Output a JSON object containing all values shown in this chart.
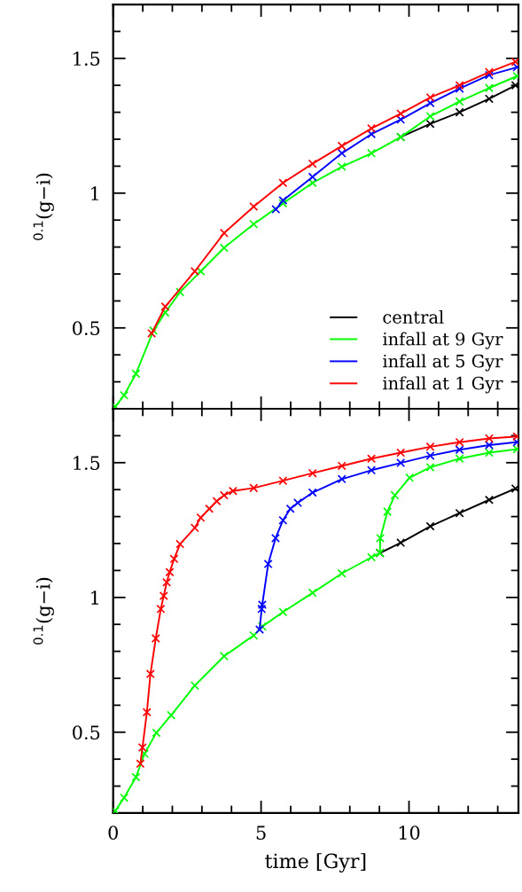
{
  "chart_data": [
    {
      "type": "line",
      "ylabel": "$^{0.1}$(g−i)",
      "xlim": [
        0,
        13.7
      ],
      "ylim": [
        0.2,
        1.7
      ],
      "marker": "cross",
      "line_style": "solid",
      "legend": "bottom right",
      "tick_labels": "y",
      "grid": false,
      "xticks": [
        0,
        {
          "value": 1,
          "label": null
        },
        {
          "value": 2,
          "label": null
        },
        {
          "value": 3,
          "label": null
        },
        {
          "value": 4,
          "label": null
        },
        5,
        {
          "value": 6,
          "label": null
        },
        {
          "value": 7,
          "label": null
        },
        {
          "value": 8,
          "label": null
        },
        {
          "value": 9,
          "label": null
        },
        10,
        {
          "value": 11,
          "label": null
        },
        {
          "value": 12,
          "label": null
        },
        {
          "value": 13,
          "label": null
        }
      ],
      "yticks": [
        {
          "value": 0.2,
          "label": null
        },
        {
          "value": 0.3,
          "label": null
        },
        {
          "value": 0.4,
          "label": null
        },
        0.5,
        {
          "value": 0.6,
          "label": null
        },
        {
          "value": 0.7,
          "label": null
        },
        {
          "value": 0.8,
          "label": null
        },
        {
          "value": 0.9,
          "label": null
        },
        1,
        {
          "value": 1.1,
          "label": null
        },
        {
          "value": 1.2,
          "label": null
        },
        {
          "value": 1.3,
          "label": null
        },
        {
          "value": 1.4,
          "label": null
        },
        1.5,
        {
          "value": 1.6,
          "label": null
        },
        {
          "value": 1.7,
          "label": null
        }
      ],
      "series": [
        {
          "name": "central",
          "color": "#000000",
          "x": [
            9.72,
            10.72,
            11.71,
            12.71,
            13.6
          ],
          "values": [
            1.208,
            1.257,
            1.3,
            1.35,
            1.4
          ]
        },
        {
          "name": "infall at 9 Gyr",
          "color": "#00ff00",
          "x": [
            0.07,
            0.37,
            0.77,
            1.36,
            1.76,
            2.26,
            2.96,
            3.75,
            4.75,
            5.74,
            6.74,
            7.73,
            8.73,
            9.72,
            10.72,
            11.71,
            12.71,
            13.65
          ],
          "values": [
            0.208,
            0.25,
            0.33,
            0.49,
            0.557,
            0.633,
            0.71,
            0.797,
            0.885,
            0.962,
            1.038,
            1.098,
            1.148,
            1.208,
            1.285,
            1.34,
            1.39,
            1.434
          ]
        },
        {
          "name": "infall at 5 Gyr",
          "color": "#0000ff",
          "x": [
            5.5,
            5.74,
            6.74,
            7.73,
            8.73,
            9.72,
            10.72,
            11.71,
            12.71,
            13.65
          ],
          "values": [
            0.94,
            0.973,
            1.06,
            1.148,
            1.219,
            1.273,
            1.334,
            1.388,
            1.438,
            1.467
          ]
        },
        {
          "name": "infall at 1 Gyr",
          "color": "#ff0000",
          "x": [
            1.3,
            1.76,
            2.76,
            3.75,
            4.75,
            5.74,
            6.74,
            7.73,
            8.73,
            9.72,
            10.72,
            11.71,
            12.71,
            13.6
          ],
          "values": [
            0.48,
            0.579,
            0.71,
            0.852,
            0.95,
            1.038,
            1.109,
            1.175,
            1.24,
            1.295,
            1.355,
            1.4,
            1.449,
            1.487
          ]
        }
      ]
    },
    {
      "type": "line",
      "xlabel": "time [Gyr]",
      "ylabel": "$^{0.1}$(g−i)",
      "xlim": [
        0,
        13.7
      ],
      "ylim": [
        0.2,
        1.7
      ],
      "marker": "cross",
      "line_style": "solid",
      "grid": false,
      "xticks": [
        0,
        {
          "value": 1,
          "label": null
        },
        {
          "value": 2,
          "label": null
        },
        {
          "value": 3,
          "label": null
        },
        {
          "value": 4,
          "label": null
        },
        5,
        {
          "value": 6,
          "label": null
        },
        {
          "value": 7,
          "label": null
        },
        {
          "value": 8,
          "label": null
        },
        {
          "value": 9,
          "label": null
        },
        10,
        {
          "value": 11,
          "label": null
        },
        {
          "value": 12,
          "label": null
        },
        {
          "value": 13,
          "label": null
        }
      ],
      "yticks": [
        {
          "value": 0.2,
          "label": null
        },
        {
          "value": 0.3,
          "label": null
        },
        {
          "value": 0.4,
          "label": null
        },
        0.5,
        {
          "value": 0.6,
          "label": null
        },
        {
          "value": 0.7,
          "label": null
        },
        {
          "value": 0.8,
          "label": null
        },
        {
          "value": 0.9,
          "label": null
        },
        1,
        {
          "value": 1.1,
          "label": null
        },
        {
          "value": 1.2,
          "label": null
        },
        {
          "value": 1.3,
          "label": null
        },
        {
          "value": 1.4,
          "label": null
        },
        1.5,
        {
          "value": 1.6,
          "label": null
        },
        {
          "value": 1.7,
          "label": null
        }
      ],
      "series": [
        {
          "color": "#000000",
          "x": [
            9.02,
            9.72,
            10.72,
            11.71,
            12.71,
            13.6
          ],
          "values": [
            1.165,
            1.203,
            1.264,
            1.313,
            1.362,
            1.404
          ]
        },
        {
          "color": "#00ff00",
          "x": [
            0.07,
            0.37,
            0.77,
            1.06,
            1.46,
            1.96,
            2.76,
            3.75,
            4.75,
            5.04,
            5.74,
            6.74,
            7.73,
            8.73,
            9.02,
            9.03,
            9.27,
            9.52,
            10.02,
            10.72,
            11.71,
            12.71,
            13.65
          ],
          "values": [
            0.208,
            0.257,
            0.333,
            0.42,
            0.498,
            0.563,
            0.673,
            0.782,
            0.859,
            0.892,
            0.946,
            1.017,
            1.089,
            1.149,
            1.165,
            1.22,
            1.318,
            1.379,
            1.444,
            1.483,
            1.515,
            1.537,
            1.55
          ]
        },
        {
          "color": "#0000ff",
          "x": [
            4.95,
            5.02,
            5.04,
            5.24,
            5.49,
            5.74,
            5.99,
            6.24,
            6.74,
            7.73,
            8.73,
            9.72,
            10.72,
            11.71,
            12.71,
            13.65
          ],
          "values": [
            0.881,
            0.957,
            0.973,
            1.124,
            1.22,
            1.286,
            1.329,
            1.351,
            1.389,
            1.439,
            1.472,
            1.499,
            1.526,
            1.548,
            1.565,
            1.576
          ]
        },
        {
          "color": "#ff0000",
          "x": [
            0.92,
            0.99,
            1.14,
            1.26,
            1.44,
            1.61,
            1.71,
            1.81,
            1.91,
            2.06,
            2.26,
            2.76,
            2.96,
            3.25,
            3.5,
            3.75,
            4.05,
            4.75,
            5.74,
            6.74,
            7.73,
            8.73,
            9.72,
            10.72,
            11.71,
            12.71,
            13.65
          ],
          "values": [
            0.383,
            0.443,
            0.574,
            0.716,
            0.848,
            0.957,
            1.006,
            1.056,
            1.094,
            1.143,
            1.198,
            1.258,
            1.296,
            1.329,
            1.357,
            1.379,
            1.395,
            1.406,
            1.433,
            1.461,
            1.488,
            1.515,
            1.537,
            1.559,
            1.576,
            1.59,
            1.597
          ]
        }
      ]
    }
  ]
}
